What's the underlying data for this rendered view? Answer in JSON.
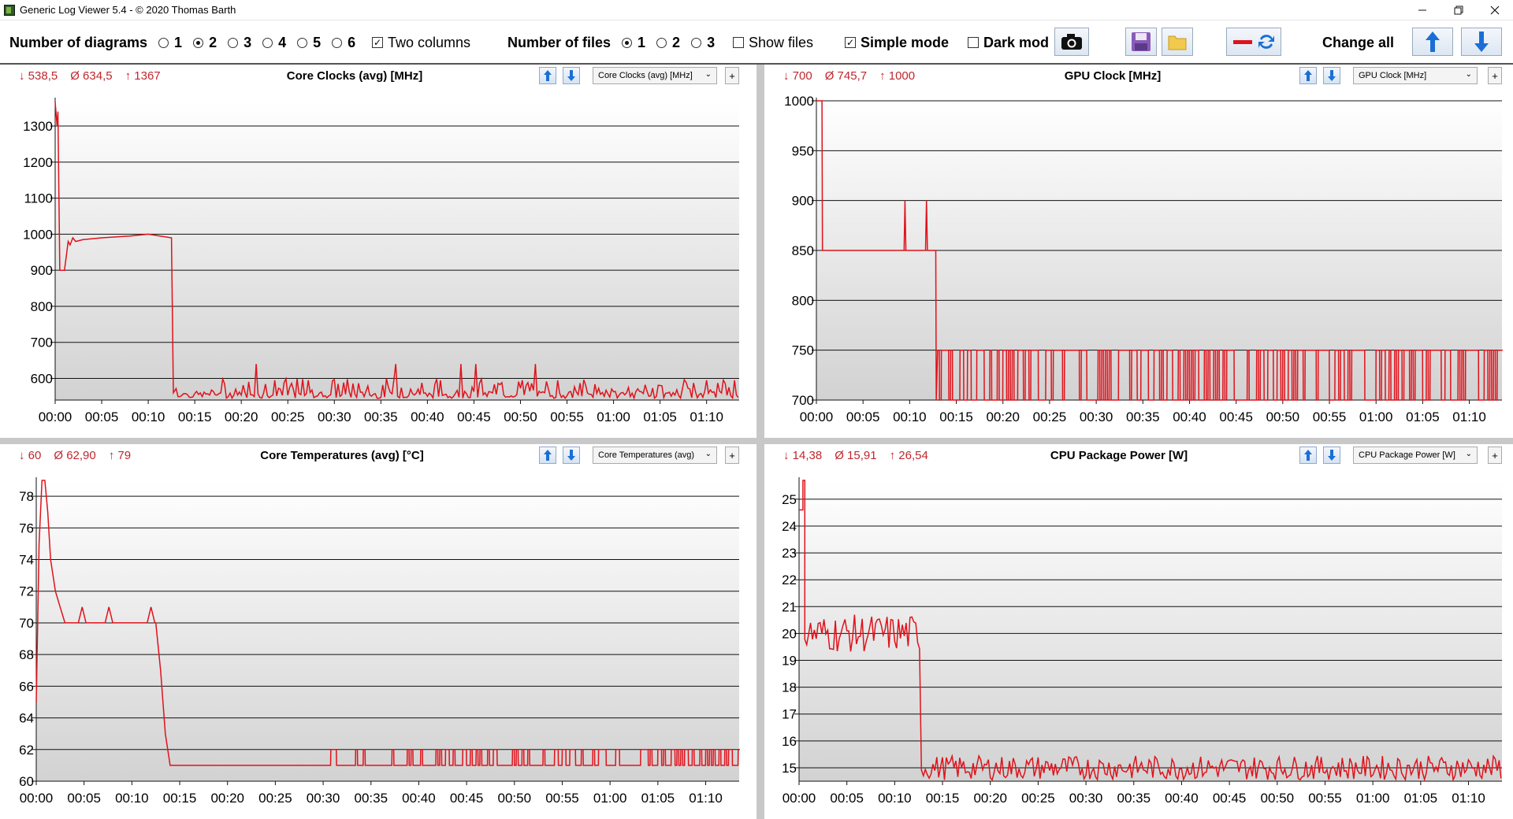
{
  "window": {
    "title": "Generic Log Viewer 5.4 - © 2020 Thomas Barth",
    "minimize_icon": "minimize-icon",
    "maximize_icon": "restore-icon",
    "close_icon": "close-icon"
  },
  "toolbar": {
    "diagrams_label": "Number of diagrams",
    "diagram_options": [
      "1",
      "2",
      "3",
      "4",
      "5",
      "6"
    ],
    "diagrams_selected": "2",
    "two_columns_label": "Two columns",
    "two_columns_checked": true,
    "files_label": "Number of files",
    "file_options": [
      "1",
      "2",
      "3"
    ],
    "files_selected": "1",
    "show_files_label": "Show files",
    "show_files_checked": false,
    "simple_mode_label": "Simple mode",
    "simple_mode_checked": true,
    "dark_mode_label": "Dark mod",
    "dark_mode_checked": false,
    "change_all_label": "Change all",
    "accent_red": "#e0121b",
    "accent_blue": "#1a6fd6"
  },
  "panels": [
    {
      "title": "Core Clocks (avg) [MHz]",
      "stat_min": "↓ 538,5",
      "stat_avg": "Ø 634,5",
      "stat_max": "↑ 1367",
      "dropdown": "Core Clocks (avg) [MHz]"
    },
    {
      "title": "GPU Clock [MHz]",
      "stat_min": "↓ 700",
      "stat_avg": "Ø 745,7",
      "stat_max": "↑ 1000",
      "dropdown": "GPU Clock [MHz]"
    },
    {
      "title": "Core Temperatures (avg) [°C]",
      "stat_min": "↓ 60",
      "stat_avg": "Ø 62,90",
      "stat_max": "↑ 79",
      "dropdown": "Core Temperatures (avg)"
    },
    {
      "title": "CPU Package Power [W]",
      "stat_min": "↓ 14,38",
      "stat_avg": "Ø 15,91",
      "stat_max": "↑ 26,54",
      "dropdown": "CPU Package Power [W]"
    }
  ],
  "chart_data": [
    {
      "type": "line",
      "title": "Core Clocks (avg) [MHz]",
      "x_ticks": [
        "00:00",
        "00:05",
        "00:10",
        "00:15",
        "00:20",
        "00:25",
        "00:30",
        "00:35",
        "00:40",
        "00:45",
        "00:50",
        "00:55",
        "01:00",
        "01:05",
        "01:10"
      ],
      "x_range_min": [
        0,
        73.5
      ],
      "y_ticks": [
        600,
        700,
        800,
        900,
        1000,
        1100,
        1200,
        1300
      ],
      "ylim": [
        540,
        1370
      ],
      "grid": true,
      "line_color": "#e0121b",
      "series": [
        {
          "segments": [
            {
              "x": [
                0,
                0.2,
                0.3,
                0.5,
                1.0,
                1.2,
                1.4,
                1.6,
                1.9,
                2.2,
                3,
                5,
                8,
                10,
                12.5,
                12.7,
                13,
                14,
                73.5
              ],
              "y": [
                1367,
                1300,
                1340,
                900,
                900,
                940,
                980,
                970,
                990,
                980,
                985,
                990,
                995,
                1000,
                990,
                560,
                560,
                555,
                560
              ],
              "noise_from": 13,
              "noise_lo": 545,
              "noise_hi": 600,
              "noise_spike": 640
            }
          ]
        }
      ]
    },
    {
      "type": "line",
      "title": "GPU Clock [MHz]",
      "x_ticks": [
        "00:00",
        "00:05",
        "00:10",
        "00:15",
        "00:20",
        "00:25",
        "00:30",
        "00:35",
        "00:40",
        "00:45",
        "00:50",
        "00:55",
        "01:00",
        "01:05",
        "01:10"
      ],
      "x_range_min": [
        0,
        73.5
      ],
      "y_ticks": [
        700,
        750,
        800,
        850,
        900,
        950,
        1000
      ],
      "ylim": [
        700,
        1000
      ],
      "grid": true,
      "line_color": "#e0121b",
      "series": [
        {
          "levels": {
            "start": 1000,
            "drop_to": 850,
            "drop_at": 0.6,
            "spikes": [
              9.5,
              11.8
            ],
            "spike_value": 900,
            "low_at": 12.8,
            "toggle_lo": 700,
            "toggle_hi": 750
          }
        }
      ]
    },
    {
      "type": "line",
      "title": "Core Temperatures (avg) [°C]",
      "x_ticks": [
        "00:00",
        "00:05",
        "00:10",
        "00:15",
        "00:20",
        "00:25",
        "00:30",
        "00:35",
        "00:40",
        "00:45",
        "00:50",
        "00:55",
        "01:00",
        "01:05",
        "01:10"
      ],
      "x_range_min": [
        0,
        73.5
      ],
      "y_ticks": [
        60,
        62,
        64,
        66,
        68,
        70,
        72,
        74,
        76,
        78
      ],
      "ylim": [
        60,
        79
      ],
      "grid": true,
      "line_color": "#e0121b",
      "series": [
        {
          "points": {
            "x": [
              0,
              0.3,
              0.6,
              0.9,
              1.2,
              1.5,
              2.0,
              2.5,
              3.0,
              4.0,
              12.5,
              13.0,
              13.5,
              14.0,
              14.5,
              73.5
            ],
            "y": [
              65,
              75,
              79,
              79,
              77,
              74,
              72,
              71,
              70,
              70,
              70,
              67,
              63,
              61,
              61,
              61
            ]
          },
          "toggle_from": 30,
          "toggle_lo": 61,
          "toggle_hi": 62
        }
      ]
    },
    {
      "type": "line",
      "title": "CPU Package Power [W]",
      "x_ticks": [
        "00:00",
        "00:05",
        "00:10",
        "00:15",
        "00:20",
        "00:25",
        "00:30",
        "00:35",
        "00:40",
        "00:45",
        "00:50",
        "00:55",
        "01:00",
        "01:05",
        "01:10"
      ],
      "x_range_min": [
        0,
        73.5
      ],
      "y_ticks": [
        15,
        16,
        17,
        18,
        19,
        20,
        21,
        22,
        23,
        24,
        25
      ],
      "ylim": [
        14.5,
        25.7
      ],
      "grid": true,
      "line_color": "#e0121b",
      "series": [
        {
          "phases": [
            {
              "from": 0,
              "to": 0.4,
              "value": 24.6
            },
            {
              "from": 0.4,
              "to": 0.6,
              "value": 26.4
            },
            {
              "from": 0.6,
              "to": 12.7,
              "value": 20.0,
              "noise": 0.7
            },
            {
              "from": 12.8,
              "to": 73.5,
              "value": 15.0,
              "noise": 0.45
            }
          ]
        }
      ]
    }
  ]
}
